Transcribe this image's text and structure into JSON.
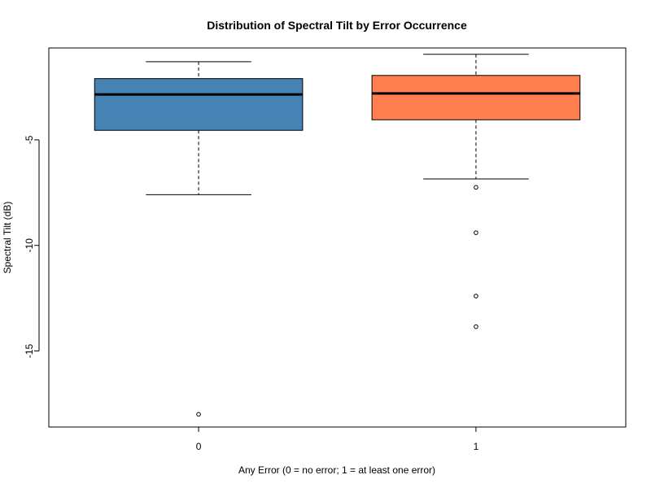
{
  "chart_data": {
    "type": "box",
    "title": "Distribution of Spectral Tilt by Error Occurrence",
    "xlabel": "Any Error (0 = no error; 1 = at least one error)",
    "ylabel": "Spectral Tilt (dB)",
    "categories": [
      "0",
      "1"
    ],
    "ylim": [
      -18.6,
      -0.65
    ],
    "yticks": [
      -5,
      -10,
      -15
    ],
    "grid": false,
    "boxes": [
      {
        "category": "0",
        "color": "#4682B4",
        "whisker_low": -7.6,
        "q1": -4.55,
        "median": -2.85,
        "q3": -2.1,
        "whisker_high": -1.3,
        "outliers": [
          -18.0
        ]
      },
      {
        "category": "1",
        "color": "#FF7F50",
        "whisker_low": -6.85,
        "q1": -4.05,
        "median": -2.8,
        "q3": -1.95,
        "whisker_high": -0.95,
        "outliers": [
          -7.25,
          -9.4,
          -12.4,
          -13.85
        ]
      }
    ]
  }
}
